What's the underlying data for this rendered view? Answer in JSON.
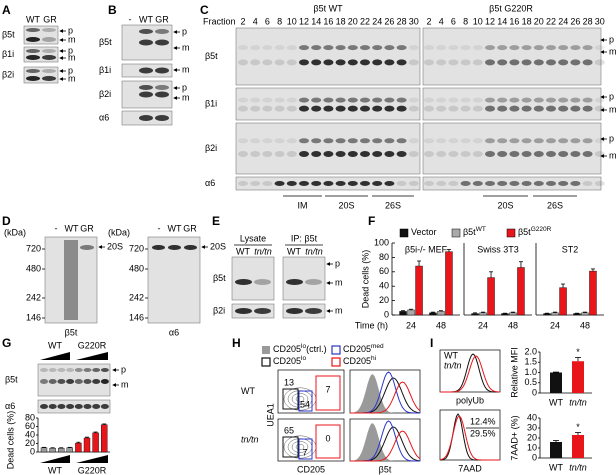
{
  "panels": {
    "A": {
      "label": "A",
      "lanes": [
        "WT",
        "GR"
      ],
      "rows": [
        "β5t",
        "β1i",
        "β2i"
      ],
      "forms": [
        "p",
        "m",
        "p",
        "m",
        "p",
        "m"
      ]
    },
    "B": {
      "label": "B",
      "lanes": [
        "-",
        "WT",
        "GR"
      ],
      "rows": [
        "β5t",
        "β1i",
        "β2i",
        "α6"
      ],
      "forms": [
        "p",
        "m",
        "m",
        "p",
        "m"
      ]
    },
    "C": {
      "label": "C",
      "fraction_label": "Fraction",
      "fractions": [
        2,
        4,
        6,
        8,
        10,
        12,
        14,
        16,
        18,
        20,
        22,
        24,
        26,
        28,
        30
      ],
      "titles": [
        "β5t WT",
        "β5t G220R"
      ],
      "rows": [
        "β5t",
        "β1i",
        "β2i",
        "α6"
      ],
      "forms": [
        "p",
        "m",
        "p",
        "m",
        "p",
        "m"
      ],
      "complexes_left": [
        "IM",
        "20S",
        "26S"
      ],
      "complexes_right": [
        "20S",
        "26S"
      ]
    },
    "D": {
      "label": "D",
      "unit": "(kDa)",
      "markers": [
        720,
        480,
        242,
        146
      ],
      "lanes": [
        "-",
        "WT",
        "GR"
      ],
      "band": "20S",
      "blots": [
        "β5t",
        "α6"
      ]
    },
    "E": {
      "label": "E",
      "groups": [
        "Lysate",
        "IP: β5t"
      ],
      "lanes": [
        "WT",
        "tn/tn"
      ],
      "rows": [
        "β5t",
        "β2i"
      ],
      "forms": [
        "p",
        "m",
        "m"
      ]
    },
    "G": {
      "label": "G",
      "lanes": [
        "WT",
        "G220R"
      ],
      "rows": [
        "β5t",
        "α6"
      ],
      "forms": [
        "p",
        "m"
      ]
    },
    "H": {
      "label": "H",
      "legend": [
        {
          "text": "CD205",
          "sup": "lo",
          "after": "(ctrl.)",
          "color": "#9a9a9a"
        },
        {
          "text": "CD205",
          "sup": "med",
          "color": "#2a35c9"
        },
        {
          "text": "CD205",
          "sup": "lo",
          "color": "#111111"
        },
        {
          "text": "CD205",
          "sup": "hi",
          "color": "#e8161b"
        }
      ],
      "rows": [
        "WT",
        "tn/tn"
      ],
      "y_label": "UEA1",
      "x_labels": [
        "CD205",
        "β5t"
      ],
      "gates": [
        [
          13,
          54,
          7
        ],
        [
          65,
          7,
          0
        ]
      ]
    },
    "I": {
      "label": "I",
      "legend": [
        "WT",
        "tn/tn"
      ],
      "colors": [
        "#111111",
        "#e8161b"
      ],
      "hist_labels": [
        "polyUb",
        "7AAD"
      ],
      "percents": [
        "12.4%",
        "29.5%"
      ]
    }
  },
  "chart_data": [
    {
      "type": "bar",
      "label": "F",
      "ylabel": "Dead cells (%)",
      "xlabel": "Time (h)",
      "groups": [
        "β5i-/- MEF",
        "Swiss 3T3",
        "ST2"
      ],
      "categories": [
        "24",
        "48",
        "24",
        "48",
        "24",
        "48"
      ],
      "series": [
        {
          "name": "Vector",
          "color": "#111111",
          "values": [
            5,
            3,
            2,
            2,
            2,
            2
          ],
          "errors": [
            1,
            1,
            1,
            0.5,
            0.5,
            0.5
          ]
        },
        {
          "name": "β5t",
          "sup": "WT",
          "color": "#aaaaaa",
          "values": [
            7,
            5,
            3,
            3,
            3,
            3
          ],
          "errors": [
            1,
            1,
            1,
            1,
            1,
            1
          ]
        },
        {
          "name": "β5t",
          "sup": "G220R",
          "color": "#e8161b",
          "values": [
            68,
            88,
            52,
            66,
            38,
            61
          ],
          "errors": [
            7,
            3,
            8,
            8,
            5,
            3
          ]
        }
      ],
      "ylim": [
        0,
        100
      ],
      "yticks": [
        0,
        20,
        40,
        60,
        80,
        100
      ]
    },
    {
      "type": "bar",
      "ylabel": "Dead cells (%)",
      "values": [
        10,
        9,
        9,
        10,
        21,
        33,
        45,
        64
      ],
      "errors": [
        1,
        1,
        1,
        1,
        2,
        2,
        2,
        2
      ],
      "colors": [
        "#9a9a9a",
        "#9a9a9a",
        "#9a9a9a",
        "#9a9a9a",
        "#e8161b",
        "#e8161b",
        "#e8161b",
        "#e8161b"
      ],
      "ylim": [
        0,
        80
      ],
      "yticks": [
        0,
        20,
        40,
        60,
        80
      ]
    },
    {
      "type": "bar",
      "ylabel": "Relative MFI",
      "categories": [
        "WT",
        "tn/tn"
      ],
      "values": [
        1.0,
        1.55
      ],
      "errors": [
        0.02,
        0.18
      ],
      "colors": [
        "#111111",
        "#e8161b"
      ],
      "annotation": "*",
      "ylim": [
        0,
        2
      ],
      "yticks": [
        0,
        0.5,
        {
          "value": 1,
          "label": "1.0"
        },
        1.5,
        {
          "value": 2,
          "label": "2.0"
        }
      ]
    },
    {
      "type": "bar",
      "ylabel": "7AAD+ (%)",
      "categories": [
        "WT",
        "tn/tn"
      ],
      "values": [
        16,
        23
      ],
      "errors": [
        1.5,
        2.5
      ],
      "colors": [
        "#111111",
        "#e8161b"
      ],
      "annotation": "*",
      "ylim": [
        0,
        40
      ],
      "yticks": [
        0,
        10,
        20,
        30,
        40
      ]
    }
  ]
}
